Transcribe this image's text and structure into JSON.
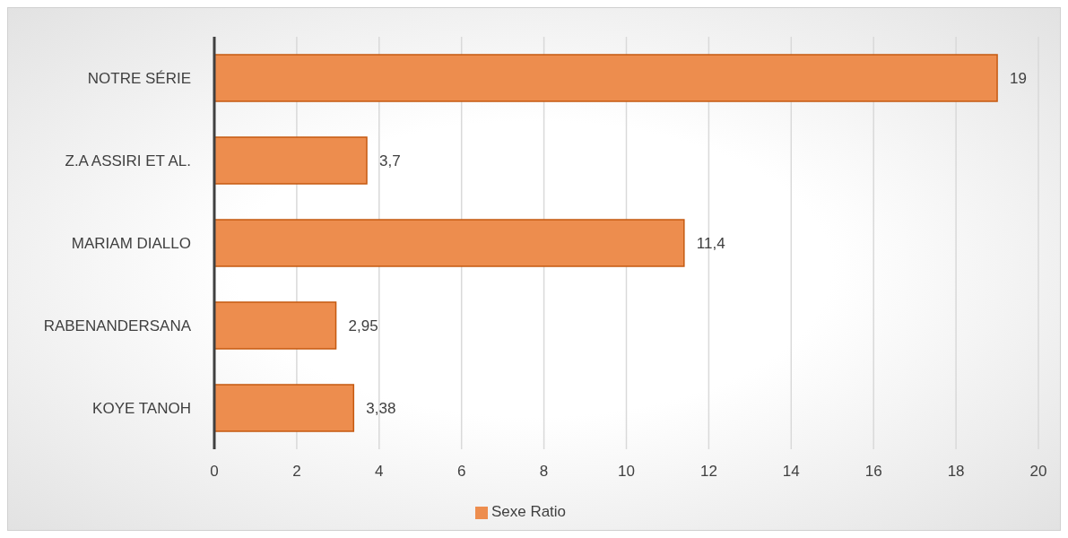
{
  "chart_data": {
    "type": "bar",
    "orientation": "horizontal",
    "categories": [
      "NOTRE SÉRIE",
      "Z.A ASSIRI ET AL.",
      "MARIAM DIALLO",
      "RABENANDERSANA",
      "KOYE TANOH"
    ],
    "series": [
      {
        "name": "Sexe Ratio",
        "color": "#ed8d4e",
        "values": [
          19,
          3.7,
          11.4,
          2.95,
          3.38
        ],
        "value_labels": [
          "19",
          "3,7",
          "11,4",
          "2,95",
          "3,38"
        ]
      }
    ],
    "xlim": [
      0,
      20
    ],
    "xticks": [
      0,
      2,
      4,
      6,
      8,
      10,
      12,
      14,
      16,
      18,
      20
    ],
    "grid": "x",
    "legend": "bottom"
  }
}
